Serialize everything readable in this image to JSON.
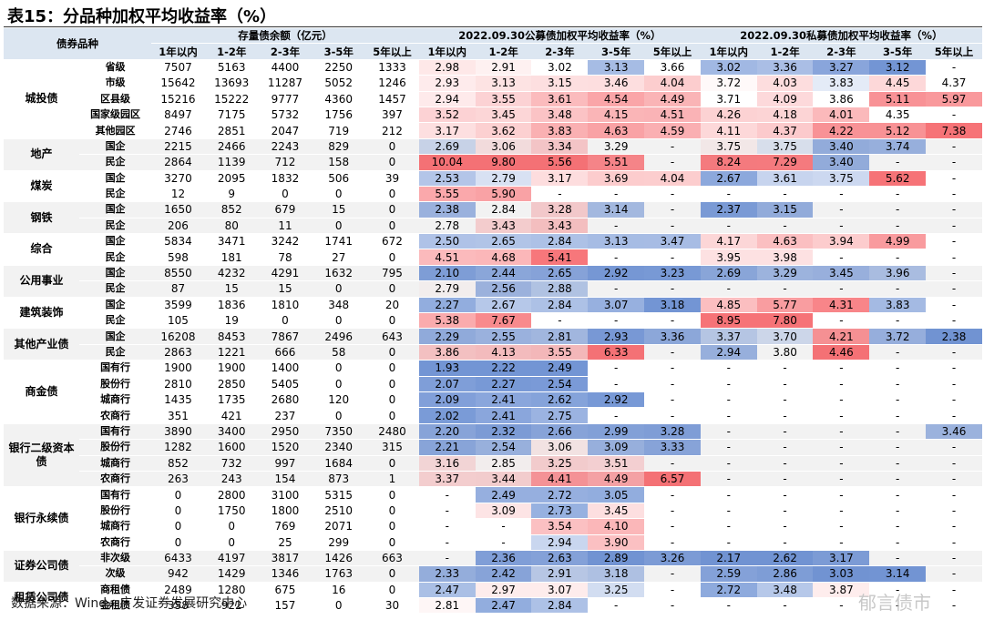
{
  "title": "表15：分品种加权平均收益率（%）",
  "table": {
    "header": {
      "first": "债券品种",
      "groups": [
        "存量债余额（亿元）",
        "2022.09.30公募债加权平均收益率（%）",
        "2022.09.30私募债加权平均收益率（%）"
      ],
      "subcols": [
        "1年以内",
        "1-2年",
        "2-3年",
        "3-5年",
        "5年以上"
      ]
    },
    "groups": [
      {
        "name": "城投债",
        "rows": [
          {
            "label": "省级",
            "values": [
              "7507",
              "5163",
              "4400",
              "2250",
              "1333",
              "2.98",
              "2.91",
              "3.02",
              "3.13",
              "3.66",
              "3.02",
              "3.36",
              "3.27",
              "3.12",
              "-"
            ]
          },
          {
            "label": "市级",
            "values": [
              "15642",
              "13693",
              "11287",
              "5052",
              "1246",
              "2.93",
              "3.13",
              "3.15",
              "3.46",
              "4.04",
              "3.72",
              "4.03",
              "3.83",
              "4.45",
              "4.37"
            ]
          },
          {
            "label": "区县级",
            "values": [
              "15216",
              "15222",
              "9777",
              "4360",
              "1457",
              "2.94",
              "3.55",
              "3.61",
              "4.54",
              "4.49",
              "3.71",
              "4.09",
              "3.86",
              "5.11",
              "5.97"
            ]
          },
          {
            "label": "国家级园区",
            "values": [
              "8497",
              "7175",
              "5732",
              "1756",
              "397",
              "3.52",
              "3.45",
              "3.48",
              "4.15",
              "4.51",
              "4.26",
              "4.18",
              "4.01",
              "4.35",
              "-"
            ]
          },
          {
            "label": "其他园区",
            "values": [
              "2746",
              "2851",
              "2047",
              "719",
              "212",
              "3.17",
              "3.62",
              "3.83",
              "4.63",
              "4.59",
              "4.11",
              "4.37",
              "4.22",
              "5.12",
              "7.38"
            ]
          }
        ]
      },
      {
        "name": "地产",
        "rows": [
          {
            "label": "国企",
            "values": [
              "2215",
              "2466",
              "2243",
              "829",
              "0",
              "2.69",
              "3.06",
              "3.34",
              "3.29",
              "-",
              "3.75",
              "3.75",
              "3.40",
              "3.74",
              "-"
            ]
          },
          {
            "label": "民企",
            "values": [
              "2864",
              "1139",
              "712",
              "158",
              "0",
              "10.04",
              "9.80",
              "5.56",
              "5.51",
              "-",
              "8.24",
              "7.29",
              "3.40",
              "-",
              "-"
            ]
          }
        ]
      },
      {
        "name": "煤炭",
        "rows": [
          {
            "label": "国企",
            "values": [
              "3270",
              "2095",
              "1832",
              "506",
              "39",
              "2.53",
              "2.79",
              "3.17",
              "3.69",
              "4.04",
              "2.67",
              "3.61",
              "3.75",
              "5.62",
              "-"
            ]
          },
          {
            "label": "民企",
            "values": [
              "12",
              "9",
              "0",
              "0",
              "0",
              "5.55",
              "5.90",
              "-",
              "-",
              "-",
              "-",
              "-",
              "-",
              "-",
              "-"
            ]
          }
        ]
      },
      {
        "name": "钢铁",
        "rows": [
          {
            "label": "国企",
            "values": [
              "1650",
              "852",
              "679",
              "15",
              "0",
              "2.38",
              "2.84",
              "3.28",
              "3.14",
              "-",
              "2.37",
              "3.15",
              "-",
              "-",
              "-"
            ]
          },
          {
            "label": "民企",
            "values": [
              "206",
              "80",
              "11",
              "0",
              "0",
              "2.78",
              "3.43",
              "3.43",
              "-",
              "-",
              "-",
              "-",
              "-",
              "-",
              "-"
            ]
          }
        ]
      },
      {
        "name": "综合",
        "rows": [
          {
            "label": "国企",
            "values": [
              "5834",
              "3471",
              "3242",
              "1741",
              "672",
              "2.50",
              "2.65",
              "2.84",
              "3.13",
              "3.47",
              "4.17",
              "4.63",
              "3.94",
              "4.99",
              "-"
            ]
          },
          {
            "label": "民企",
            "values": [
              "598",
              "181",
              "78",
              "27",
              "0",
              "4.51",
              "4.68",
              "5.41",
              "-",
              "-",
              "3.95",
              "3.98",
              "-",
              "-",
              "-"
            ]
          }
        ]
      },
      {
        "name": "公用事业",
        "rows": [
          {
            "label": "国企",
            "values": [
              "8550",
              "4232",
              "4291",
              "1632",
              "795",
              "2.10",
              "2.44",
              "2.65",
              "2.92",
              "3.23",
              "2.69",
              "3.29",
              "3.45",
              "3.96",
              "-"
            ]
          },
          {
            "label": "民企",
            "values": [
              "87",
              "15",
              "15",
              "0",
              "0",
              "2.79",
              "2.56",
              "2.88",
              "-",
              "-",
              "-",
              "-",
              "-",
              "-",
              "-"
            ]
          }
        ]
      },
      {
        "name": "建筑装饰",
        "rows": [
          {
            "label": "国企",
            "values": [
              "3599",
              "1836",
              "1810",
              "348",
              "20",
              "2.27",
              "2.67",
              "2.84",
              "3.07",
              "3.18",
              "4.85",
              "5.77",
              "4.31",
              "3.83",
              "-"
            ]
          },
          {
            "label": "民企",
            "values": [
              "105",
              "19",
              "0",
              "0",
              "0",
              "5.38",
              "7.67",
              "-",
              "-",
              "-",
              "8.95",
              "7.80",
              "-",
              "-",
              "-"
            ]
          }
        ]
      },
      {
        "name": "其他产业债",
        "rows": [
          {
            "label": "国企",
            "values": [
              "16208",
              "8453",
              "7867",
              "2496",
              "643",
              "2.29",
              "2.55",
              "2.81",
              "2.93",
              "3.36",
              "3.37",
              "3.70",
              "4.21",
              "3.72",
              "2.38"
            ]
          },
          {
            "label": "民企",
            "values": [
              "2863",
              "1221",
              "666",
              "58",
              "0",
              "3.86",
              "4.13",
              "3.55",
              "6.33",
              "-",
              "2.94",
              "3.80",
              "4.46",
              "-",
              "-"
            ]
          }
        ]
      },
      {
        "name": "商金债",
        "rows": [
          {
            "label": "国有行",
            "values": [
              "1900",
              "1900",
              "1400",
              "0",
              "0",
              "1.93",
              "2.22",
              "2.49",
              "-",
              "-",
              "-",
              "-",
              "-",
              "-",
              "-"
            ]
          },
          {
            "label": "股份行",
            "values": [
              "2810",
              "2850",
              "5405",
              "0",
              "0",
              "2.07",
              "2.27",
              "2.54",
              "-",
              "-",
              "-",
              "-",
              "-",
              "-",
              "-"
            ]
          },
          {
            "label": "城商行",
            "values": [
              "1435",
              "1735",
              "2680",
              "120",
              "0",
              "2.09",
              "2.41",
              "2.62",
              "2.92",
              "-",
              "-",
              "-",
              "-",
              "-",
              "-"
            ]
          },
          {
            "label": "农商行",
            "values": [
              "351",
              "421",
              "237",
              "0",
              "0",
              "2.02",
              "2.41",
              "2.75",
              "-",
              "-",
              "-",
              "-",
              "-",
              "-",
              "-"
            ]
          }
        ]
      },
      {
        "name": "银行二级资本债",
        "rows": [
          {
            "label": "国有行",
            "values": [
              "3890",
              "3400",
              "2950",
              "7350",
              "2480",
              "2.20",
              "2.32",
              "2.66",
              "2.99",
              "3.28",
              "-",
              "-",
              "-",
              "-",
              "3.46"
            ]
          },
          {
            "label": "股份行",
            "values": [
              "1282",
              "1600",
              "1520",
              "2340",
              "315",
              "2.21",
              "2.54",
              "3.06",
              "3.09",
              "3.33",
              "-",
              "-",
              "-",
              "-",
              "-"
            ]
          },
          {
            "label": "城商行",
            "values": [
              "852",
              "732",
              "997",
              "1684",
              "0",
              "3.16",
              "2.85",
              "3.25",
              "3.51",
              "-",
              "-",
              "-",
              "-",
              "-",
              "-"
            ]
          },
          {
            "label": "农商行",
            "values": [
              "263",
              "243",
              "154",
              "873",
              "1",
              "3.37",
              "3.44",
              "4.41",
              "4.49",
              "6.57",
              "-",
              "-",
              "-",
              "-",
              "-"
            ]
          }
        ]
      },
      {
        "name": "银行永续债",
        "rows": [
          {
            "label": "国有行",
            "values": [
              "0",
              "2800",
              "3100",
              "5315",
              "0",
              "-",
              "2.49",
              "2.72",
              "3.05",
              "-",
              "-",
              "-",
              "-",
              "-",
              "-"
            ]
          },
          {
            "label": "股份行",
            "values": [
              "0",
              "1750",
              "1800",
              "2510",
              "0",
              "-",
              "3.09",
              "2.73",
              "3.45",
              "-",
              "-",
              "-",
              "-",
              "-",
              "-"
            ]
          },
          {
            "label": "城商行",
            "values": [
              "0",
              "0",
              "769",
              "2071",
              "0",
              "-",
              "-",
              "3.54",
              "4.10",
              "-",
              "-",
              "-",
              "-",
              "-",
              "-"
            ]
          },
          {
            "label": "农商行",
            "values": [
              "0",
              "0",
              "25",
              "299",
              "0",
              "-",
              "-",
              "2.94",
              "3.90",
              "-",
              "-",
              "-",
              "-",
              "-",
              "-"
            ]
          }
        ]
      },
      {
        "name": "证券公司债",
        "rows": [
          {
            "label": "非次级",
            "values": [
              "6433",
              "4197",
              "3817",
              "1426",
              "663",
              "-",
              "2.36",
              "2.63",
              "2.89",
              "3.26",
              "2.17",
              "2.62",
              "3.17",
              "-",
              "-"
            ]
          },
          {
            "label": "次级",
            "values": [
              "942",
              "1429",
              "1346",
              "1763",
              "0",
              "2.33",
              "2.42",
              "2.91",
              "3.18",
              "-",
              "2.59",
              "2.86",
              "3.03",
              "3.14",
              "-"
            ]
          }
        ]
      },
      {
        "name": "租赁公司债",
        "rows": [
          {
            "label": "商租债",
            "values": [
              "2489",
              "1280",
              "675",
              "16",
              "0",
              "2.47",
              "2.97",
              "3.07",
              "3.25",
              "-",
              "2.72",
              "3.48",
              "3.87",
              "-",
              "-"
            ]
          },
          {
            "label": "金租债",
            "values": [
              "358",
              "922",
              "157",
              "0",
              "30",
              "2.81",
              "2.47",
              "2.84",
              "-",
              "-",
              "-",
              "-",
              "-",
              "-",
              "-"
            ]
          }
        ]
      }
    ]
  },
  "source": "数据来源：Wind，广发证券发展研究中心",
  "watermark": "郁言债市"
}
